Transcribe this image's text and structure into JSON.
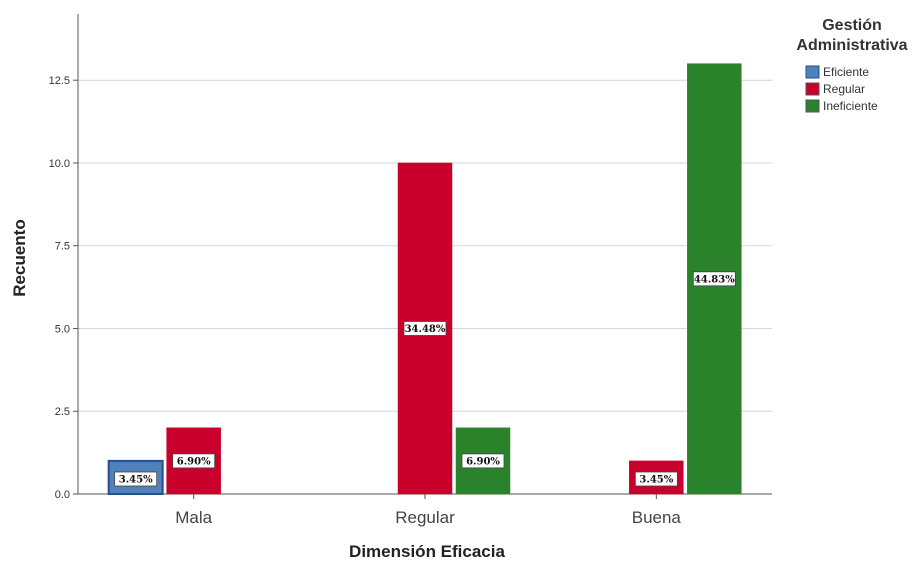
{
  "chart_data": {
    "type": "bar",
    "categories": [
      "Mala",
      "Regular",
      "Buena"
    ],
    "series": [
      {
        "name": "Eficiente",
        "color": "#4f81bd",
        "values": [
          1,
          0,
          0
        ],
        "labels": [
          "3.45%",
          "",
          ""
        ]
      },
      {
        "name": "Regular",
        "color": "#c9002c",
        "values": [
          2,
          10,
          1
        ],
        "labels": [
          "6.90%",
          "34.48%",
          "3.45%"
        ]
      },
      {
        "name": "Ineficiente",
        "color": "#2a832b",
        "values": [
          0,
          2,
          13
        ],
        "labels": [
          "",
          "6.90%",
          "44.83%"
        ]
      }
    ],
    "xlabel": "Dimensión Eficacia",
    "ylabel": "Recuento",
    "ylim": [
      0,
      14.5
    ],
    "yticks": [
      "0.0",
      "2.5",
      "5.0",
      "7.5",
      "10.0",
      "12.5"
    ],
    "ytick_values": [
      0,
      2.5,
      5,
      7.5,
      10,
      12.5
    ],
    "grid": true,
    "legend": {
      "title_lines": [
        "Gestión",
        "Administrativa"
      ],
      "placement": "top-right"
    }
  }
}
